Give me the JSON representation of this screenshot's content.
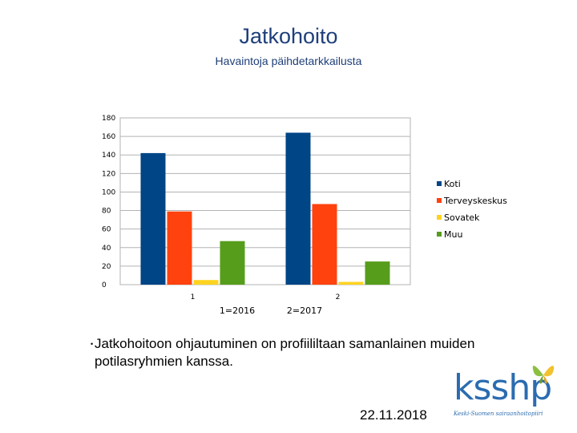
{
  "title": "Jatkohoito",
  "subtitle": "Havaintoja päihdetarkkailusta",
  "chart_data": {
    "type": "bar",
    "categories": [
      "1",
      "2"
    ],
    "category_labels": [
      "1=2016",
      "2=2017"
    ],
    "series": [
      {
        "name": "Koti",
        "values": [
          142,
          164
        ],
        "color": "#004586"
      },
      {
        "name": "Terveyskeskus",
        "values": [
          79,
          87
        ],
        "color": "#ff420e"
      },
      {
        "name": "Sovatek",
        "values": [
          5,
          3
        ],
        "color": "#ffd320"
      },
      {
        "name": "Muu",
        "values": [
          47,
          25
        ],
        "color": "#579d1c"
      }
    ],
    "ylim": [
      0,
      180
    ],
    "yticks": [
      0,
      20,
      40,
      60,
      80,
      100,
      120,
      140,
      160,
      180
    ],
    "grid": true,
    "legend": "right"
  },
  "body": {
    "bullet": "•",
    "text": "Jatkohoitoon ohjautuminen on profiililtaan samanlainen muiden potilasryhmien kanssa."
  },
  "date": "22.11.2018",
  "logo": {
    "word": "ksshp",
    "tagline": "Keski-Suomen sairaanhoitopiiri"
  }
}
